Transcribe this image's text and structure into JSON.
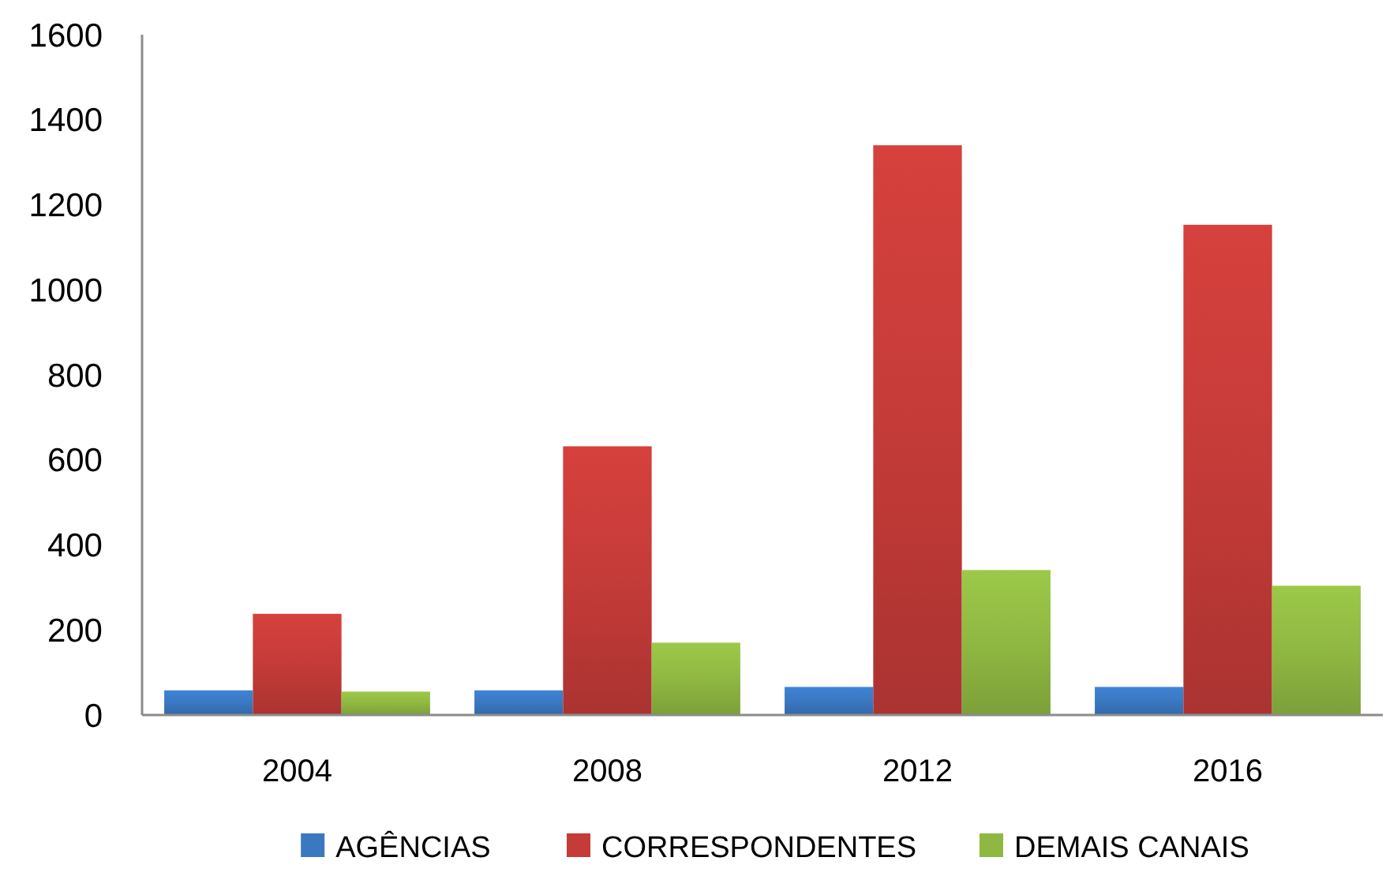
{
  "chart_data": {
    "type": "bar",
    "categories": [
      "2004",
      "2008",
      "2012",
      "2016"
    ],
    "series": [
      {
        "name": "AGÊNCIAS",
        "color": "#3a78c2",
        "values": [
          58,
          58,
          66,
          66
        ]
      },
      {
        "name": "CORRESPONDENTES",
        "color": "#c43b38",
        "values": [
          238,
          632,
          1340,
          1153
        ]
      },
      {
        "name": "DEMAIS CANAIS",
        "color": "#8fb842",
        "values": [
          55,
          170,
          341,
          304
        ]
      }
    ],
    "ylim": [
      0,
      1600
    ],
    "yticks": [
      0,
      200,
      400,
      600,
      800,
      1000,
      1200,
      1400,
      1600
    ],
    "grid": false,
    "legend": "bottom"
  }
}
